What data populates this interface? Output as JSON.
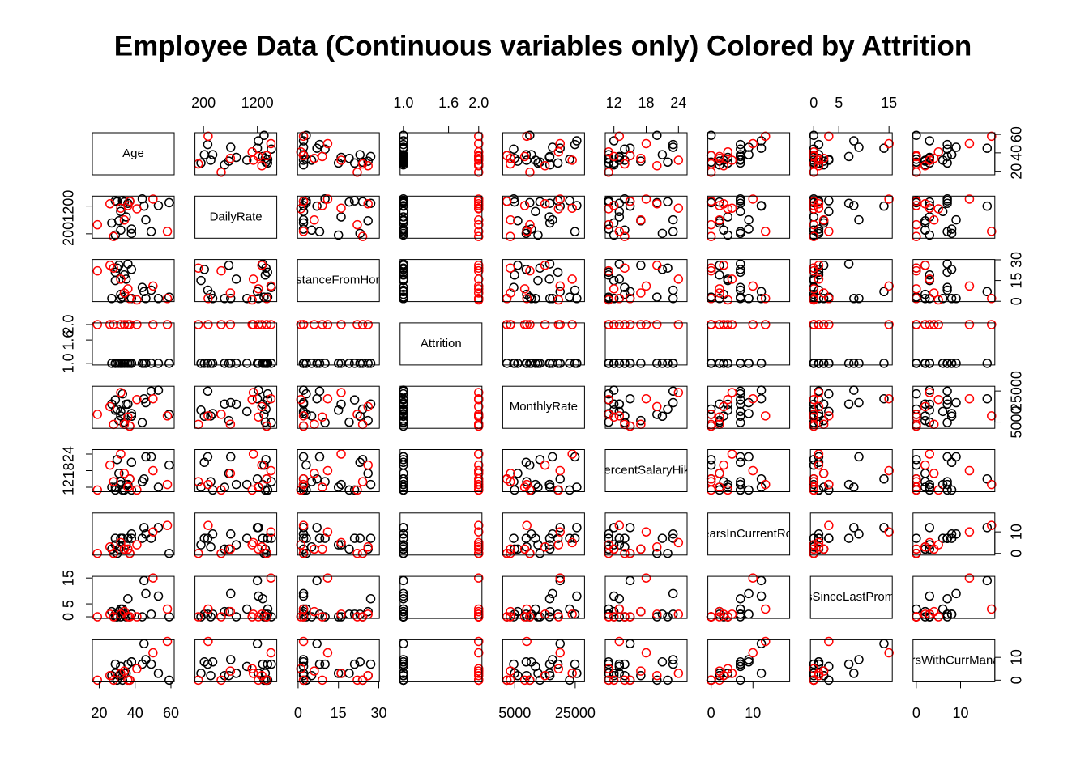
{
  "chart_data": {
    "type": "pairs",
    "title": "Employee Data (Continuous variables only) Colored by Attrition",
    "variables": [
      {
        "name": "Age",
        "lim": [
          18,
          60
        ],
        "ticks": [
          20,
          40,
          60
        ]
      },
      {
        "name": "DailyRate",
        "lim": [
          102,
          1499
        ],
        "ticks": [
          200,
          1200
        ]
      },
      {
        "name": "DistanceFromHome",
        "lim": [
          1,
          29
        ],
        "ticks": [
          0,
          15,
          30
        ]
      },
      {
        "name": "Attrition",
        "lim": [
          1,
          2
        ],
        "ticks": [
          {
            "value": 1,
            "label": "1.0"
          },
          {
            "value": 1.6,
            "label": "1.6"
          },
          {
            "value": 2,
            "label": "2.0"
          }
        ]
      },
      {
        "name": "MonthlyRate",
        "lim": [
          2094,
          26999
        ],
        "ticks": [
          5000,
          25000
        ]
      },
      {
        "name": "PercentSalaryHike",
        "lim": [
          11,
          25
        ],
        "ticks": [
          12,
          18,
          24
        ]
      },
      {
        "name": "YearsInCurrentRole",
        "lim": [
          0,
          18
        ],
        "ticks": [
          0,
          10
        ]
      },
      {
        "name": "YearsSinceLastPromotion",
        "lim": [
          0,
          15
        ],
        "ticks": [
          0,
          5,
          15
        ]
      },
      {
        "name": "YearsWithCurrManager",
        "lim": [
          0,
          17
        ],
        "ticks": [
          0,
          10
        ]
      }
    ],
    "series": [
      {
        "color": "#000000",
        "values": [
          [
            49,
            279,
            8,
            1,
            24907,
            23,
            7,
            1,
            7
          ],
          [
            37,
            1373,
            2,
            1,
            2396,
            15,
            0,
            0,
            0
          ],
          [
            33,
            1392,
            3,
            1,
            23159,
            11,
            7,
            3,
            0
          ],
          [
            27,
            591,
            2,
            1,
            16632,
            12,
            2,
            2,
            2
          ],
          [
            32,
            1005,
            2,
            1,
            11864,
            13,
            7,
            3,
            6
          ],
          [
            59,
            1324,
            3,
            1,
            9964,
            20,
            0,
            0,
            0
          ],
          [
            30,
            1358,
            24,
            1,
            13335,
            22,
            0,
            0,
            0
          ],
          [
            38,
            216,
            23,
            1,
            8787,
            21,
            7,
            1,
            8
          ],
          [
            36,
            1299,
            27,
            1,
            16577,
            13,
            7,
            7,
            7
          ],
          [
            35,
            809,
            16,
            1,
            16479,
            13,
            4,
            0,
            3
          ],
          [
            29,
            153,
            15,
            1,
            12682,
            12,
            4,
            0,
            3
          ],
          [
            31,
            670,
            26,
            1,
            5992,
            17,
            2,
            2,
            2
          ],
          [
            34,
            1346,
            19,
            1,
            4933,
            11,
            2,
            1,
            3
          ],
          [
            29,
            1389,
            21,
            1,
            19281,
            11,
            7,
            1,
            7
          ],
          [
            32,
            334,
            5,
            1,
            8954,
            14,
            3,
            0,
            2
          ],
          [
            38,
            371,
            2,
            1,
            10496,
            11,
            9,
            1,
            8
          ],
          [
            46,
            705,
            2,
            1,
            17485,
            23,
            9,
            9,
            9
          ],
          [
            44,
            1459,
            10,
            1,
            4670,
            14,
            7,
            0,
            7
          ],
          [
            53,
            1219,
            2,
            1,
            25526,
            12,
            12,
            8,
            3
          ],
          [
            45,
            1199,
            7,
            1,
            20000,
            15,
            12,
            14,
            16
          ]
        ]
      },
      {
        "color": "#ff0000",
        "values": [
          [
            41,
            1102,
            1,
            2,
            19479,
            11,
            4,
            0,
            5
          ],
          [
            37,
            1373,
            2,
            2,
            2396,
            15,
            0,
            0,
            0
          ],
          [
            28,
            103,
            24,
            2,
            3525,
            14,
            0,
            0,
            0
          ],
          [
            36,
            1218,
            9,
            2,
            8300,
            12,
            2,
            0,
            0
          ],
          [
            34,
            699,
            6,
            2,
            3600,
            17,
            2,
            2,
            4
          ],
          [
            32,
            1125,
            16,
            2,
            24000,
            24,
            5,
            1,
            3
          ],
          [
            19,
            528,
            22,
            2,
            10000,
            11,
            0,
            0,
            0
          ],
          [
            50,
            1452,
            11,
            2,
            20000,
            18,
            10,
            15,
            12
          ],
          [
            26,
            1283,
            26,
            2,
            15000,
            20,
            3,
            1,
            2
          ],
          [
            58,
            286,
            2,
            2,
            9000,
            13,
            13,
            3,
            17
          ]
        ]
      }
    ]
  }
}
